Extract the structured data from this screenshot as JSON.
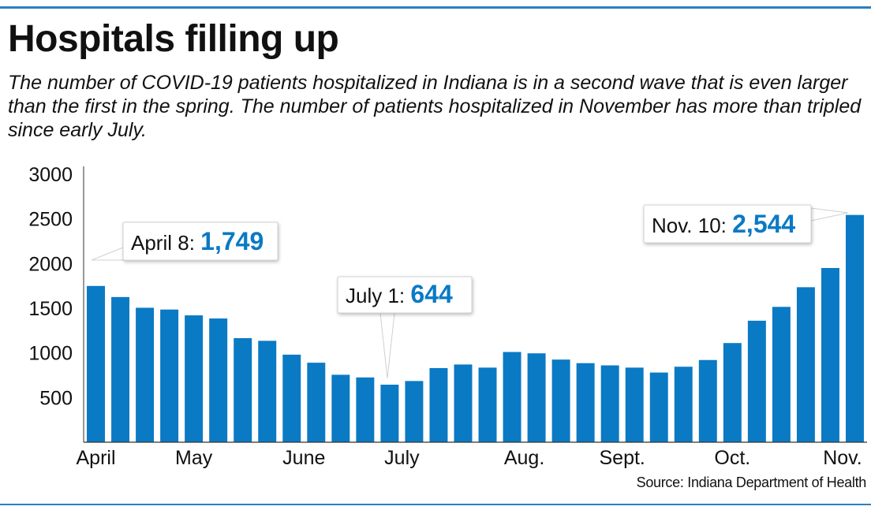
{
  "header": {
    "title": "Hospitals filling up",
    "subtitle": "The number of COVID-19 patients hospitalized in Indiana is in a second wave that is even larger than the first in the spring. The number of patients hospitalized in November has more than tripled since early July."
  },
  "footer": {
    "source": "Source: Indiana Department of Health"
  },
  "colors": {
    "bar": "#0a7ac4",
    "accent_value": "#0a7ac4",
    "rule": "#2b7fc1",
    "axis": "#333333"
  },
  "chart_data": {
    "type": "bar",
    "ylim": [
      0,
      3000
    ],
    "yticks": [
      500,
      1000,
      1500,
      2000,
      2500,
      3000
    ],
    "grid": false,
    "xlabel": "",
    "ylabel": "",
    "values": [
      1749,
      1625,
      1505,
      1485,
      1420,
      1385,
      1165,
      1135,
      980,
      890,
      755,
      725,
      644,
      685,
      830,
      870,
      835,
      1010,
      995,
      925,
      885,
      860,
      835,
      780,
      845,
      920,
      1110,
      1360,
      1515,
      1735,
      1950,
      2544
    ],
    "month_labels": [
      {
        "label": "April",
        "bar_index": 0
      },
      {
        "label": "May",
        "bar_index": 4
      },
      {
        "label": "June",
        "bar_index": 8.5
      },
      {
        "label": "July",
        "bar_index": 12.5
      },
      {
        "label": "Aug.",
        "bar_index": 17.5
      },
      {
        "label": "Sept.",
        "bar_index": 21.5
      },
      {
        "label": "Oct.",
        "bar_index": 26
      },
      {
        "label": "Nov.",
        "bar_index": 30.5
      }
    ],
    "annotations": [
      {
        "label": "April 8:",
        "value": "1,749",
        "bar_index": 0
      },
      {
        "label": "July 1:",
        "value": "644",
        "bar_index": 12
      },
      {
        "label": "Nov. 10:",
        "value": "2,544",
        "bar_index": 31
      }
    ]
  }
}
